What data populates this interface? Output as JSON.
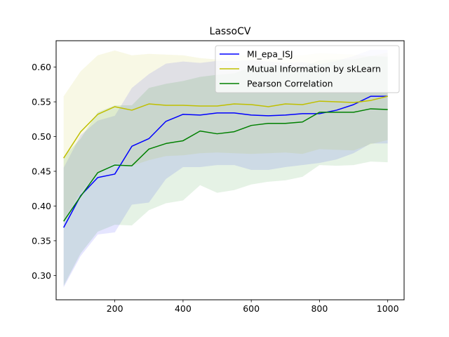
{
  "chart_data": {
    "type": "line",
    "title": "LassoCV",
    "xlabel": "",
    "ylabel": "",
    "xlim": [
      28,
      1048
    ],
    "ylim": [
      0.265,
      0.638
    ],
    "grid": false,
    "legend_position": "top-right",
    "x": [
      50,
      100,
      150,
      200,
      250,
      300,
      350,
      400,
      450,
      500,
      550,
      600,
      650,
      700,
      750,
      800,
      850,
      900,
      950,
      1000
    ],
    "xticks": [
      200,
      400,
      600,
      800,
      1000
    ],
    "xtick_labels": [
      "200",
      "400",
      "600",
      "800",
      "1000"
    ],
    "yticks": [
      0.3,
      0.35,
      0.4,
      0.45,
      0.5,
      0.55,
      0.6
    ],
    "ytick_labels": [
      "0.30",
      "0.35",
      "0.40",
      "0.45",
      "0.50",
      "0.55",
      "0.60"
    ],
    "series": [
      {
        "name": "MI_epa_ISJ",
        "color": "#0000ff",
        "values": [
          0.369,
          0.415,
          0.441,
          0.446,
          0.486,
          0.497,
          0.522,
          0.532,
          0.531,
          0.534,
          0.534,
          0.531,
          0.53,
          0.531,
          0.533,
          0.533,
          0.538,
          0.546,
          0.558,
          0.558
        ],
        "lower": [
          0.283,
          0.328,
          0.359,
          0.362,
          0.402,
          0.405,
          0.439,
          0.456,
          0.456,
          0.459,
          0.459,
          0.452,
          0.452,
          0.456,
          0.459,
          0.462,
          0.467,
          0.476,
          0.49,
          0.49
        ],
        "upper": [
          0.455,
          0.502,
          0.523,
          0.53,
          0.57,
          0.59,
          0.605,
          0.608,
          0.606,
          0.609,
          0.609,
          0.61,
          0.608,
          0.606,
          0.607,
          0.604,
          0.609,
          0.616,
          0.625,
          0.625
        ]
      },
      {
        "name": "Mutual Information by skLearn",
        "color": "#bfbf00",
        "values": [
          0.469,
          0.507,
          0.532,
          0.543,
          0.538,
          0.547,
          0.545,
          0.545,
          0.544,
          0.544,
          0.547,
          0.546,
          0.543,
          0.547,
          0.546,
          0.551,
          0.55,
          0.549,
          0.552,
          0.558
        ],
        "lower": [
          0.38,
          0.42,
          0.448,
          0.462,
          0.458,
          0.466,
          0.472,
          0.473,
          0.476,
          0.477,
          0.476,
          0.475,
          0.476,
          0.477,
          0.475,
          0.482,
          0.481,
          0.48,
          0.489,
          0.495
        ],
        "upper": [
          0.558,
          0.594,
          0.617,
          0.624,
          0.617,
          0.619,
          0.618,
          0.617,
          0.613,
          0.611,
          0.617,
          0.617,
          0.612,
          0.617,
          0.617,
          0.62,
          0.619,
          0.618,
          0.616,
          0.621
        ]
      },
      {
        "name": "Pearson Correlation",
        "color": "#008000",
        "values": [
          0.378,
          0.414,
          0.448,
          0.459,
          0.458,
          0.482,
          0.49,
          0.494,
          0.508,
          0.504,
          0.507,
          0.516,
          0.519,
          0.519,
          0.521,
          0.535,
          0.535,
          0.535,
          0.54,
          0.539
        ],
        "lower": [
          0.285,
          0.332,
          0.363,
          0.373,
          0.372,
          0.394,
          0.404,
          0.408,
          0.43,
          0.419,
          0.423,
          0.431,
          0.435,
          0.437,
          0.442,
          0.459,
          0.458,
          0.459,
          0.464,
          0.463
        ],
        "upper": [
          0.471,
          0.497,
          0.535,
          0.545,
          0.545,
          0.57,
          0.576,
          0.58,
          0.586,
          0.589,
          0.591,
          0.6,
          0.603,
          0.601,
          0.6,
          0.61,
          0.611,
          0.611,
          0.616,
          0.615
        ]
      }
    ]
  }
}
